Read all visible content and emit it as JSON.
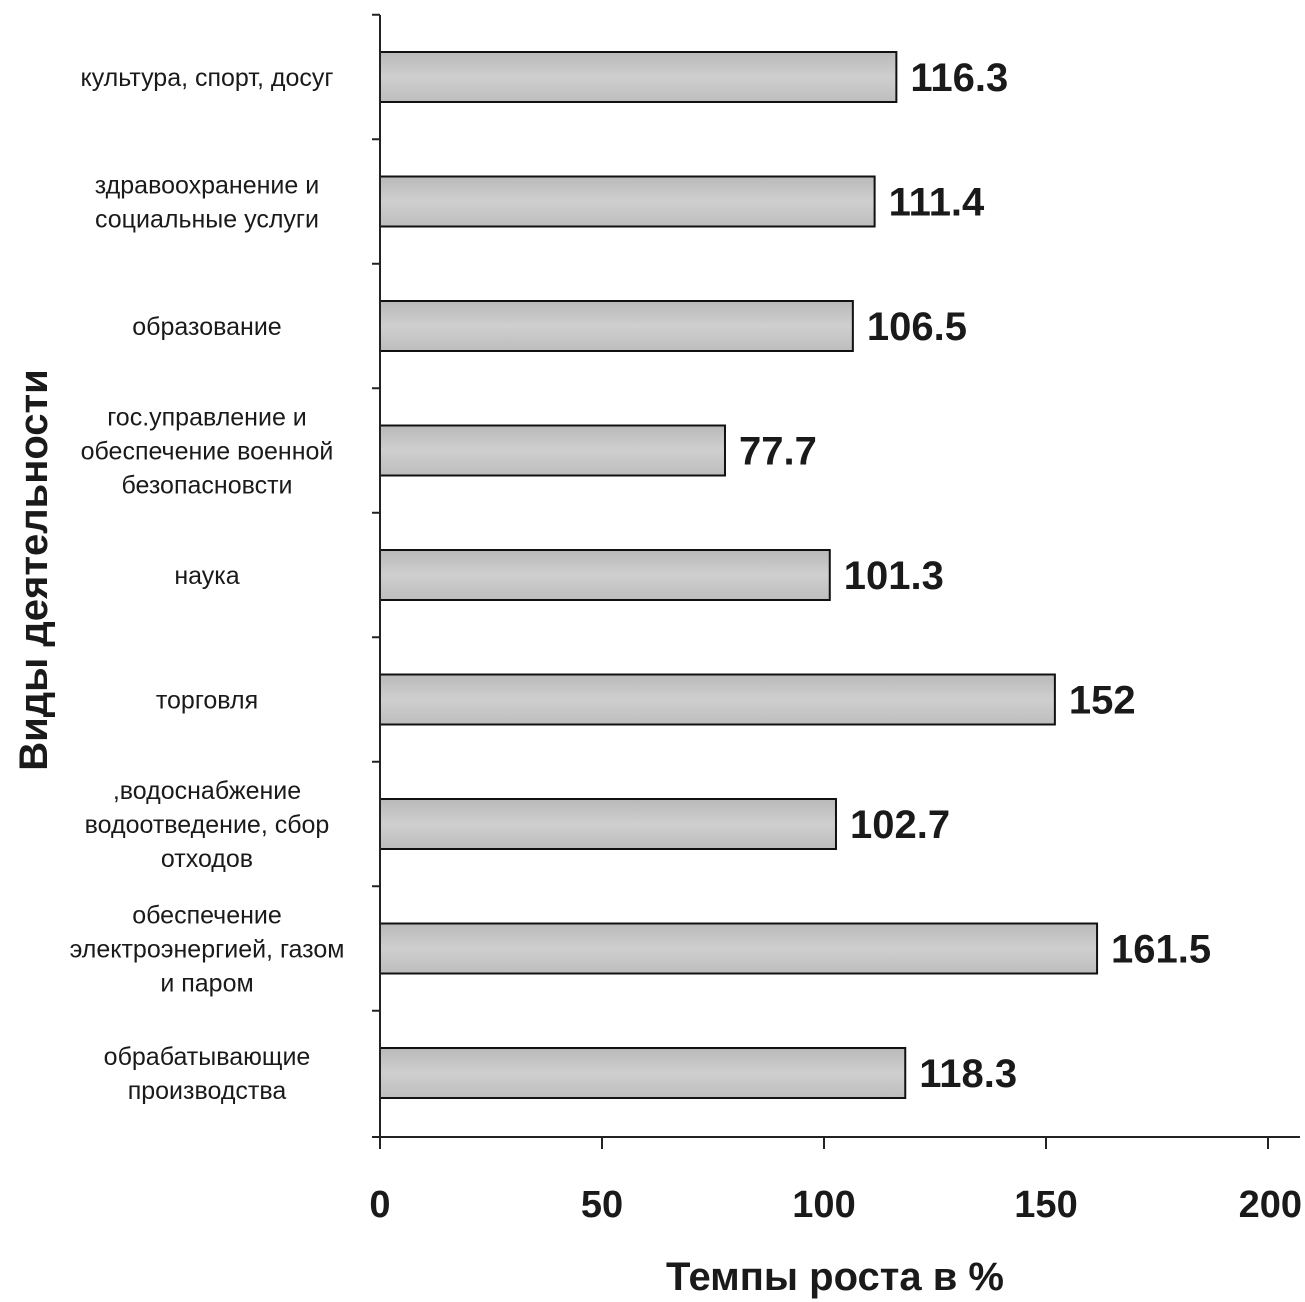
{
  "chart_data": {
    "type": "bar",
    "orientation": "horizontal",
    "categories": [
      "культура, спорт, досуг",
      "здравоохранение и\nсоциальные услуги",
      "образование",
      "гос.управление и\nобеспечение военной\nбезопасновсти",
      "наука",
      "торговля",
      ",водоснабжение\nводоотведение, сбор\nотходов",
      "обеспечение\nэлектроэнергией, газом\nи паром",
      "обрабатывающие\nпроизводства"
    ],
    "values": [
      116.3,
      111.4,
      106.5,
      77.7,
      101.3,
      152,
      102.7,
      161.5,
      118.3
    ],
    "value_labels": [
      "116.3",
      "111.4",
      "106.5",
      "77.7",
      "101.3",
      "152",
      "102.7",
      "161.5",
      "118.3"
    ],
    "xlabel": "Темпы роста в %",
    "ylabel": "Виды деятельности",
    "xlim": [
      0,
      200
    ],
    "xticks": [
      "0",
      "50",
      "100",
      "150",
      "200"
    ],
    "grid": false,
    "bar_color": "#c4c4c4",
    "edge_color": "#111111"
  }
}
